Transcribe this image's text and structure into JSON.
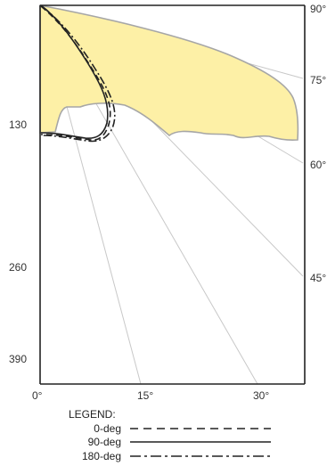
{
  "y_axis_labels": [
    "130",
    "260",
    "390"
  ],
  "x_axis_labels": [
    "0°",
    "15°",
    "30°"
  ],
  "angle_labels": [
    "90°",
    "75°",
    "60°",
    "45°"
  ],
  "legend": {
    "title": "LEGEND:",
    "items": [
      {
        "label": "0-deg",
        "style": "dashed"
      },
      {
        "label": "90-deg",
        "style": "solid"
      },
      {
        "label": "180-deg",
        "style": "dash-dot"
      }
    ]
  },
  "colors": {
    "fill": "#fdf0a6",
    "fill_outline": "#a6a6a6",
    "axis": "#222222",
    "guide_lines": "#c8c8c8",
    "curves": "#222222"
  }
}
